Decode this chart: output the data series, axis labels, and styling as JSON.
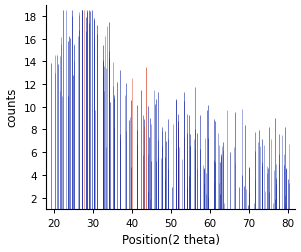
{
  "title": "",
  "xlabel": "Position(2 theta)",
  "ylabel": "counts",
  "xlim": [
    18,
    82
  ],
  "ylim": [
    1,
    19
  ],
  "yticks": [
    2,
    4,
    6,
    8,
    10,
    12,
    14,
    16,
    18
  ],
  "xticks": [
    20,
    30,
    40,
    50,
    60,
    70,
    80
  ],
  "line_color_blue": "#1A2EAA",
  "line_color_red": "#CC2200",
  "bg_color": "#ffffff",
  "figsize": [
    3.01,
    2.53
  ],
  "dpi": 100,
  "baseline": 1.0
}
